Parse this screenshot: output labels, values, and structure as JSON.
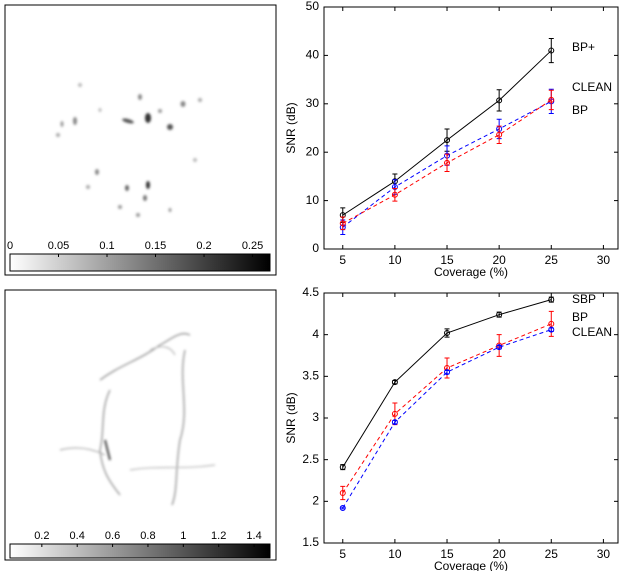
{
  "chart_data": [
    {
      "type": "image",
      "colorbar": {
        "clim": [
          0,
          0.268
        ],
        "ticks": [
          0,
          0.05,
          0.1,
          0.15,
          0.2,
          0.25
        ]
      }
    },
    {
      "type": "line",
      "xlabel": "Coverage (%)",
      "ylabel": "SNR (dB)",
      "x": [
        5,
        10,
        15,
        20,
        25
      ],
      "xlim": [
        3.2,
        31.4
      ],
      "xticks": [
        5,
        10,
        15,
        20,
        25,
        30
      ],
      "ylim": [
        0,
        50
      ],
      "yticks": [
        0,
        10,
        20,
        30,
        40,
        50
      ],
      "series": [
        {
          "name": "BP+",
          "color": "#000000",
          "dash": false,
          "values": [
            7,
            14,
            22.5,
            30.7,
            41
          ],
          "errors": [
            1.5,
            1.5,
            2.3,
            2.2,
            2.5
          ]
        },
        {
          "name": "CLEAN",
          "color": "#0000ff",
          "dash": true,
          "values": [
            4.5,
            12.8,
            19.3,
            24.8,
            30.5
          ],
          "errors": [
            1.5,
            1.5,
            2,
            2,
            2.5
          ]
        },
        {
          "name": "BP",
          "color": "#ff0000",
          "dash": true,
          "values": [
            5.3,
            11.2,
            17.8,
            23.6,
            30.8
          ],
          "errors": [
            1.3,
            1.3,
            1.8,
            1.8,
            2
          ]
        }
      ]
    },
    {
      "type": "image",
      "colorbar": {
        "clim": [
          0.02,
          1.49
        ],
        "ticks": [
          0.2,
          0.4,
          0.6,
          0.8,
          1,
          1.2,
          1.4
        ]
      }
    },
    {
      "type": "line",
      "xlabel": "Coverage (%)",
      "ylabel": "SNR (dB)",
      "x": [
        5,
        10,
        15,
        20,
        25
      ],
      "xlim": [
        3.2,
        31.4
      ],
      "xticks": [
        5,
        10,
        15,
        20,
        25,
        30
      ],
      "ylim": [
        1.5,
        4.5
      ],
      "yticks": [
        1.5,
        2,
        2.5,
        3,
        3.5,
        4,
        4.5
      ],
      "series": [
        {
          "name": "SBP",
          "color": "#000000",
          "dash": false,
          "values": [
            2.41,
            3.43,
            4.02,
            4.24,
            4.42
          ],
          "errors": [
            0.03,
            0.02,
            0.05,
            0.03,
            0.03
          ]
        },
        {
          "name": "BP",
          "color": "#ff0000",
          "dash": true,
          "values": [
            2.1,
            3.05,
            3.6,
            3.87,
            4.13
          ],
          "errors": [
            0.08,
            0.13,
            0.12,
            0.13,
            0.15
          ]
        },
        {
          "name": "CLEAN",
          "color": "#0000ff",
          "dash": true,
          "values": [
            1.92,
            2.95,
            3.55,
            3.85,
            4.06
          ],
          "errors": [
            0.01,
            0.02,
            0.02,
            0.02,
            0.02
          ]
        }
      ]
    }
  ]
}
